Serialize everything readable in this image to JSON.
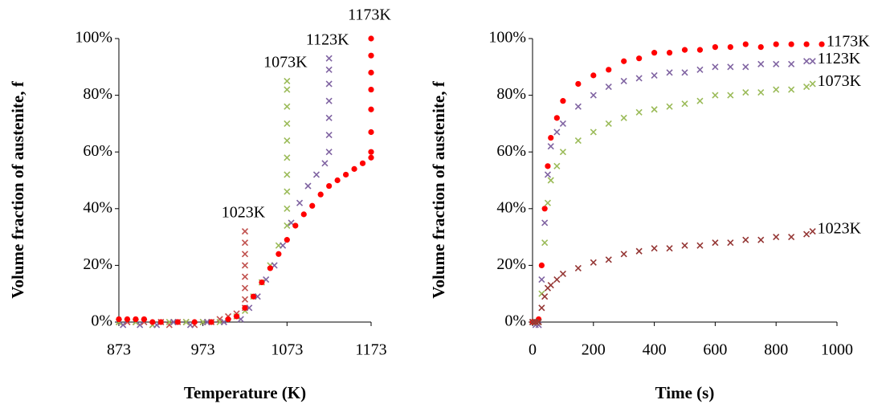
{
  "chart_data": [
    {
      "type": "scatter",
      "x_label": "Temperature (K)",
      "y_label": "Volume fraction of austenite, f",
      "xlim": [
        873,
        1173
      ],
      "xticks": [
        873,
        973,
        1073,
        1173
      ],
      "ylim": [
        0,
        100
      ],
      "yticks": [
        {
          "value": 0,
          "label": "0%"
        },
        {
          "value": 20,
          "label": "20%"
        },
        {
          "value": 40,
          "label": "40%"
        },
        {
          "value": 60,
          "label": "60%"
        },
        {
          "value": 80,
          "label": "80%"
        },
        {
          "value": 100,
          "label": "100%"
        }
      ],
      "series": [
        {
          "name": "1023K",
          "color": "#c0504d",
          "marker": "x",
          "x": [
            873,
            883,
            893,
            903,
            913,
            923,
            933,
            943,
            953,
            963,
            973,
            983,
            993,
            1003,
            1013,
            1023,
            1023,
            1023,
            1023,
            1023,
            1023,
            1023,
            1023
          ],
          "values": [
            0,
            0,
            0,
            0,
            -1,
            0,
            -1,
            0,
            0,
            -1,
            0,
            0,
            1,
            2,
            3,
            5,
            8,
            12,
            16,
            20,
            24,
            28,
            32
          ]
        },
        {
          "name": "1073K",
          "color": "#9bbb59",
          "marker": "x",
          "x": [
            873,
            893,
            913,
            933,
            953,
            973,
            993,
            1013,
            1023,
            1033,
            1043,
            1053,
            1063,
            1073,
            1073,
            1073,
            1073,
            1073,
            1073,
            1073,
            1073,
            1073,
            1073
          ],
          "values": [
            0,
            0,
            -1,
            0,
            0,
            0,
            0,
            2,
            4,
            9,
            14,
            20,
            27,
            34,
            40,
            46,
            52,
            58,
            64,
            70,
            76,
            82,
            85
          ]
        },
        {
          "name": "1123K",
          "color": "#8064a2",
          "marker": "x",
          "x": [
            878,
            898,
            918,
            938,
            958,
            978,
            998,
            1018,
            1028,
            1038,
            1048,
            1058,
            1068,
            1078,
            1088,
            1098,
            1108,
            1118,
            1123,
            1123,
            1123,
            1123,
            1123,
            1123,
            1123
          ],
          "values": [
            -1,
            -1,
            -1,
            0,
            -1,
            0,
            0,
            1,
            5,
            9,
            15,
            20,
            27,
            35,
            42,
            48,
            52,
            56,
            60,
            66,
            72,
            78,
            84,
            89,
            93
          ]
        },
        {
          "name": "1173K",
          "color": "#ff0000",
          "marker": "circle",
          "x": [
            873,
            883,
            893,
            903,
            913,
            923,
            943,
            963,
            983,
            1003,
            1013,
            1023,
            1033,
            1043,
            1053,
            1063,
            1073,
            1083,
            1093,
            1103,
            1113,
            1123,
            1133,
            1143,
            1153,
            1163,
            1173,
            1173,
            1173,
            1173,
            1173,
            1173,
            1173,
            1173
          ],
          "values": [
            1,
            1,
            1,
            1,
            0,
            0,
            0,
            0,
            0,
            1,
            2,
            5,
            9,
            14,
            19,
            24,
            29,
            34,
            38,
            41,
            45,
            48,
            50,
            52,
            54,
            56,
            58,
            60,
            67,
            75,
            82,
            88,
            94,
            100
          ]
        }
      ]
    },
    {
      "type": "scatter",
      "x_label": "Time (s)",
      "y_label": "Volume fraction of austenite, f",
      "xlim": [
        0,
        1000
      ],
      "xticks": [
        0,
        200,
        400,
        600,
        800,
        1000
      ],
      "ylim": [
        0,
        100
      ],
      "yticks": [
        {
          "value": 0,
          "label": "0%"
        },
        {
          "value": 20,
          "label": "20%"
        },
        {
          "value": 40,
          "label": "40%"
        },
        {
          "value": 60,
          "label": "60%"
        },
        {
          "value": 80,
          "label": "80%"
        },
        {
          "value": 100,
          "label": "100%"
        }
      ],
      "series": [
        {
          "name": "1173K",
          "color": "#ff0000",
          "marker": "circle",
          "x": [
            0,
            10,
            20,
            30,
            40,
            50,
            60,
            80,
            100,
            150,
            200,
            250,
            300,
            350,
            400,
            450,
            500,
            550,
            600,
            650,
            700,
            750,
            800,
            850,
            900,
            950
          ],
          "values": [
            0,
            0,
            1,
            20,
            40,
            55,
            65,
            72,
            78,
            84,
            87,
            89,
            92,
            93,
            95,
            95,
            96,
            96,
            97,
            97,
            98,
            97,
            98,
            98,
            98,
            98
          ]
        },
        {
          "name": "1123K",
          "color": "#8064a2",
          "marker": "x",
          "x": [
            0,
            10,
            20,
            30,
            40,
            50,
            60,
            80,
            100,
            150,
            200,
            250,
            300,
            350,
            400,
            450,
            500,
            550,
            600,
            650,
            700,
            750,
            800,
            850,
            900,
            920
          ],
          "values": [
            0,
            -1,
            -1,
            15,
            35,
            52,
            62,
            67,
            70,
            76,
            80,
            83,
            85,
            86,
            87,
            88,
            88,
            89,
            90,
            90,
            90,
            91,
            91,
            91,
            92,
            92
          ]
        },
        {
          "name": "1073K",
          "color": "#9bbb59",
          "marker": "x",
          "x": [
            0,
            10,
            20,
            30,
            40,
            50,
            60,
            80,
            100,
            150,
            200,
            250,
            300,
            350,
            400,
            450,
            500,
            550,
            600,
            650,
            700,
            750,
            800,
            850,
            900,
            920
          ],
          "values": [
            0,
            0,
            0,
            10,
            28,
            42,
            50,
            55,
            60,
            64,
            67,
            70,
            72,
            74,
            75,
            76,
            77,
            78,
            80,
            80,
            81,
            81,
            82,
            82,
            83,
            84
          ]
        },
        {
          "name": "1023K",
          "color": "#953735",
          "marker": "x",
          "x": [
            0,
            10,
            20,
            30,
            40,
            50,
            60,
            80,
            100,
            150,
            200,
            250,
            300,
            350,
            400,
            450,
            500,
            550,
            600,
            650,
            700,
            750,
            800,
            850,
            900,
            920
          ],
          "values": [
            0,
            0,
            0,
            5,
            9,
            12,
            13,
            15,
            17,
            19,
            21,
            22,
            24,
            25,
            26,
            26,
            27,
            27,
            28,
            28,
            29,
            29,
            30,
            30,
            31,
            32
          ]
        }
      ]
    }
  ]
}
